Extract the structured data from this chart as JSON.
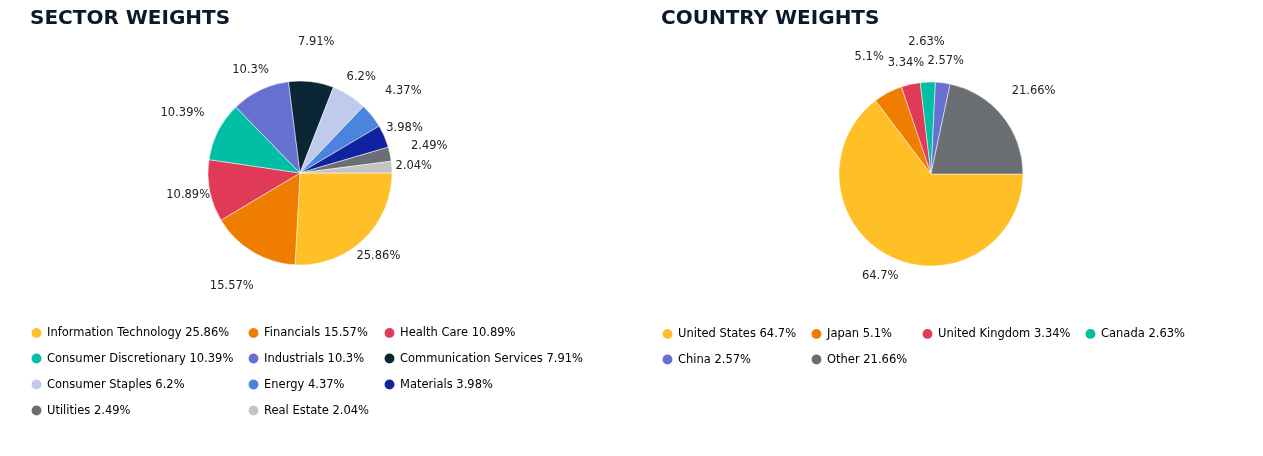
{
  "chart_data": [
    {
      "type": "pie",
      "title": "SECTOR WEIGHTS",
      "categories": [
        "Information Technology",
        "Financials",
        "Health Care",
        "Consumer Discretionary",
        "Industrials",
        "Communication Services",
        "Consumer Staples",
        "Energy",
        "Materials",
        "Utilities",
        "Real Estate"
      ],
      "values": [
        25.86,
        15.57,
        10.89,
        10.39,
        10.3,
        7.91,
        6.2,
        4.37,
        3.98,
        2.49,
        2.04
      ],
      "value_labels": [
        "25.86%",
        "15.57%",
        "10.89%",
        "10.39%",
        "10.3%",
        "7.91%",
        "6.2%",
        "4.37%",
        "3.98%",
        "2.49%",
        "2.04%"
      ],
      "colors": [
        "#ffbf27",
        "#ee7d00",
        "#e03a58",
        "#00bfa5",
        "#6570d0",
        "#0a2533",
        "#c0cbeb",
        "#4a84dc",
        "#1122a0",
        "#6b6f73",
        "#c4c4c4"
      ],
      "legend": "bottom"
    },
    {
      "type": "pie",
      "title": "COUNTRY WEIGHTS",
      "categories": [
        "United States",
        "Japan",
        "United Kingdom",
        "Canada",
        "China",
        "Other"
      ],
      "values": [
        64.7,
        5.1,
        3.34,
        2.63,
        2.57,
        21.66
      ],
      "value_labels": [
        "64.7%",
        "5.1%",
        "3.34%",
        "2.63%",
        "2.57%",
        "21.66%"
      ],
      "colors": [
        "#ffbf27",
        "#ee7d00",
        "#e03a58",
        "#00bfa5",
        "#6570d0",
        "#6b6f73"
      ],
      "legend": "bottom"
    }
  ]
}
